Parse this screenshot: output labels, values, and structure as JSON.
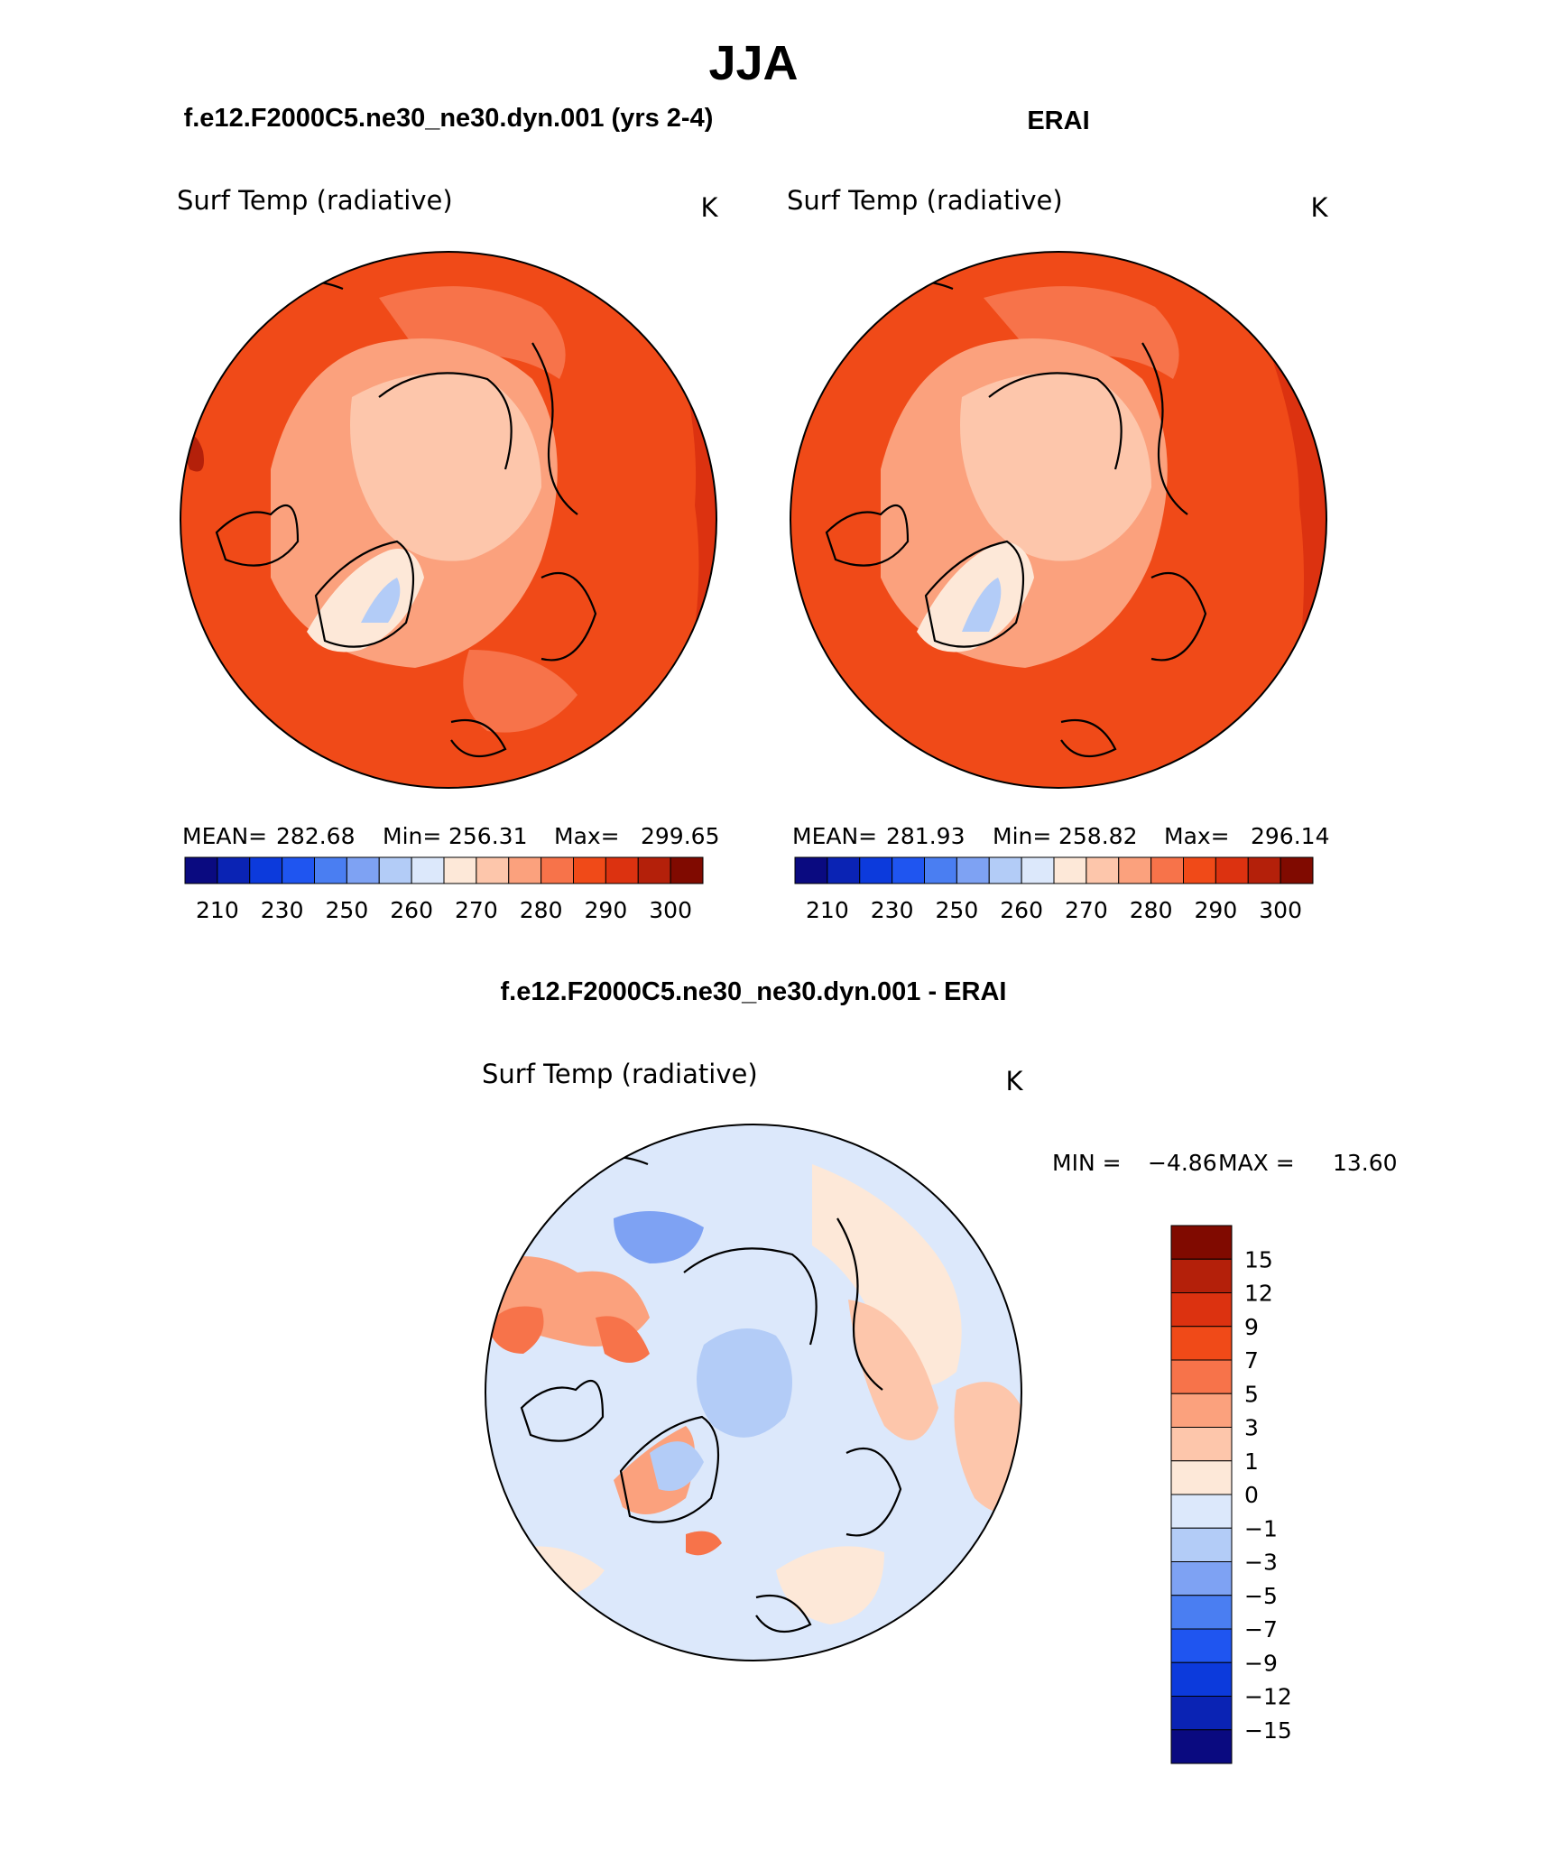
{
  "page_title": "JJA",
  "panel_left": {
    "case_title": "f.e12.F2000C5.ne30_ne30.dyn.001 (yrs 2-4)",
    "variable": "Surf Temp (radiative)",
    "units": "K",
    "stats": {
      "mean_label": "MEAN=",
      "mean": "282.68",
      "min_label": "Min=",
      "min": "256.31",
      "max_label": "Max=",
      "max": "299.65"
    }
  },
  "panel_right": {
    "case_title": "ERAI",
    "variable": "Surf Temp (radiative)",
    "units": "K",
    "stats": {
      "mean_label": "MEAN=",
      "mean": "281.93",
      "min_label": "Min=",
      "min": "258.82",
      "max_label": "Max=",
      "max": "296.14"
    }
  },
  "abs_colorbar": {
    "colors": [
      "#0a0a80",
      "#0a23b4",
      "#0c3adc",
      "#1f55f0",
      "#4a7ef2",
      "#7ea2f3",
      "#b3ccf7",
      "#dce8fb",
      "#fde8d8",
      "#fdc6ab",
      "#fba17d",
      "#f7734a",
      "#f04a18",
      "#dc3210",
      "#b4200a",
      "#800a00"
    ],
    "tick_labels": [
      "210",
      "230",
      "250",
      "260",
      "270",
      "280",
      "290",
      "300"
    ]
  },
  "panel_diff": {
    "title": "f.e12.F2000C5.ne30_ne30.dyn.001 - ERAI",
    "variable": "Surf Temp (radiative)",
    "units": "K",
    "minmax": {
      "min_label": "MIN =",
      "min": "−4.86",
      "max_label": "MAX =",
      "max": "13.60"
    }
  },
  "diff_colorbar": {
    "colors": [
      "#800a00",
      "#b4200a",
      "#dc3210",
      "#f04a18",
      "#f7734a",
      "#fba17d",
      "#fdc6ab",
      "#fde8d8",
      "#dce8fb",
      "#b3ccf7",
      "#7ea2f3",
      "#4a7ef2",
      "#1f55f0",
      "#0c3adc",
      "#0a23b4",
      "#0a0a80"
    ],
    "tick_labels": [
      "15",
      "12",
      "9",
      "7",
      "5",
      "3",
      "1",
      "0",
      "−1",
      "−3",
      "−5",
      "−7",
      "−9",
      "−12",
      "−15"
    ]
  },
  "map_palette": {
    "deep_warm": "#dc3210",
    "warm": "#f04a18",
    "mid_warm": "#f7734a",
    "light_warm": "#fba17d",
    "pale_warm": "#fdc6ab",
    "very_pale_warm": "#fde8d8",
    "pale_cool": "#dce8fb",
    "light_cool": "#b3ccf7",
    "mid_cool": "#7ea2f3",
    "coast": "#000000"
  }
}
